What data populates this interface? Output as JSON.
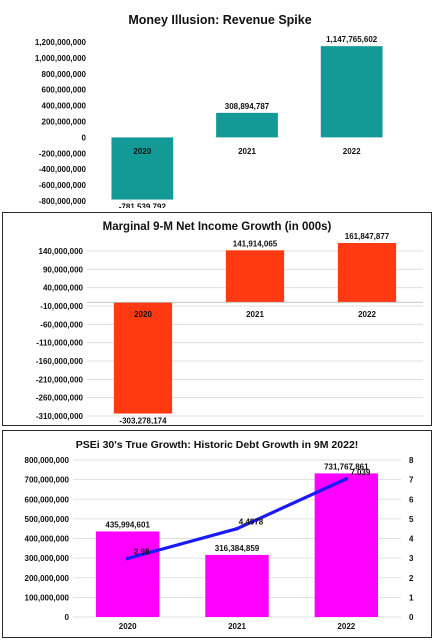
{
  "chart_data": [
    {
      "type": "bar",
      "title": "Money Illusion: Revenue Spike",
      "categories": [
        "2020",
        "2021",
        "2022"
      ],
      "values": [
        -781539792,
        308894787,
        1147765602
      ],
      "value_labels": [
        "-781,539,792",
        "308,894,787",
        "1,147,765,602"
      ],
      "ylim": [
        -800000000,
        1200000000
      ],
      "yticks": [
        1200000000,
        1000000000,
        800000000,
        600000000,
        400000000,
        200000000,
        0,
        -200000000,
        -400000000,
        -600000000,
        -800000000
      ],
      "ytick_labels": [
        "1,200,000,000",
        "1,000,000,000",
        "800,000,000",
        "600,000,000",
        "400,000,000",
        "200,000,000",
        "0",
        "-200,000,000",
        "-400,000,000",
        "-600,000,000",
        "-800,000,000"
      ],
      "bar_color": "#139a97",
      "grid": false,
      "legend": "none"
    },
    {
      "type": "bar",
      "title": "Marginal 9-M Net Income Growth (in 000s)",
      "categories": [
        "2020",
        "2021",
        "2022"
      ],
      "values": [
        -303278174,
        141914065,
        161847877
      ],
      "value_labels": [
        "-303,278,174",
        "141,914,065",
        "161,847,877"
      ],
      "ylim": [
        -310000000,
        140000000
      ],
      "yticks": [
        140000000,
        90000000,
        40000000,
        -10000000,
        -60000000,
        -110000000,
        -160000000,
        -210000000,
        -260000000,
        -310000000
      ],
      "ytick_labels": [
        "140,000,000",
        "90,000,000",
        "40,000,000",
        "-10,000,000",
        "-60,000,000",
        "-110,000,000",
        "-160,000,000",
        "-210,000,000",
        "-260,000,000",
        "-310,000,000"
      ],
      "bar_color": "#ff3a12",
      "grid": true,
      "legend": "none"
    },
    {
      "type": "bar",
      "title": "PSEi 30's True Growth: Historic Debt Growth in 9M 2022!",
      "categories": [
        "2020",
        "2021",
        "2022"
      ],
      "values": [
        435994601,
        316384859,
        731767861
      ],
      "value_labels": [
        "435,994,601",
        "316,384,859",
        "731,767,861"
      ],
      "ylim": [
        0,
        800000000
      ],
      "yticks": [
        800000000,
        700000000,
        600000000,
        500000000,
        400000000,
        300000000,
        200000000,
        100000000,
        0
      ],
      "ytick_labels": [
        "800,000,000",
        "700,000,000",
        "600,000,000",
        "500,000,000",
        "400,000,000",
        "300,000,000",
        "200,000,000",
        "100,000,000",
        "0"
      ],
      "bar_color": "#ff00ff",
      "line_series": {
        "values": [
          2.98,
          4.4978,
          7.039
        ],
        "value_labels": [
          "2.98",
          "4.4978",
          "7.039"
        ],
        "color": "#1a1aff",
        "y2lim": [
          0,
          8
        ],
        "y2ticks": [
          "8",
          "7",
          "6",
          "5",
          "4",
          "3",
          "2",
          "1",
          "0"
        ]
      },
      "grid": true,
      "legend": "none"
    }
  ]
}
